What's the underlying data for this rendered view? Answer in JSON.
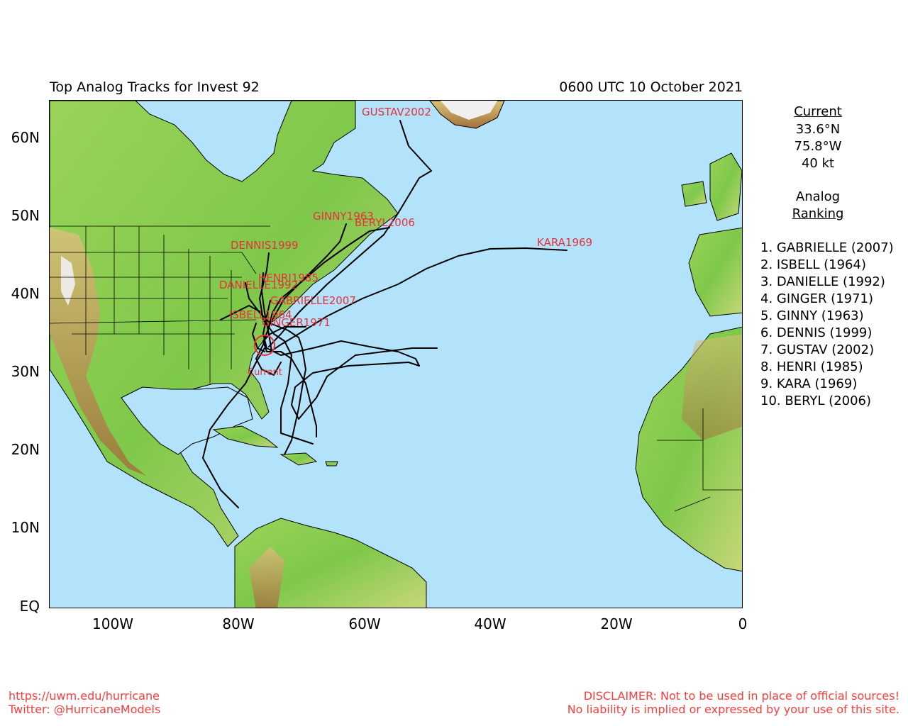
{
  "header": {
    "title": "Top Analog Tracks for Invest 92",
    "datetime": "0600 UTC 10 October 2021"
  },
  "axes": {
    "lat_labels": [
      "60N",
      "50N",
      "40N",
      "30N",
      "20N",
      "10N",
      "EQ"
    ],
    "lon_labels": [
      "100W",
      "80W",
      "60W",
      "40W",
      "20W",
      "0"
    ]
  },
  "current": {
    "heading": "Current",
    "lat": "33.6°N",
    "lon": "75.8°W",
    "intensity": "40 kt",
    "marker_label": "Current",
    "marker_color": "#e8303a"
  },
  "analog": {
    "heading_line1": "Analog",
    "heading_line2": "Ranking",
    "ranking": [
      "1.  GABRIELLE (2007)",
      "2.  ISBELL (1964)",
      "3.  DANIELLE (1992)",
      "4.  GINGER (1971)",
      "5.  GINNY (1963)",
      "6.  DENNIS (1999)",
      "7.  GUSTAV (2002)",
      "8.  HENRI (1985)",
      "9.  KARA (1969)",
      "10. BERYL (2006)"
    ]
  },
  "track_labels": [
    "GUSTAV2002",
    "GINNY1963",
    "BERYL2006",
    "KARA1969",
    "DENNIS1999",
    "HENRI1985",
    "DANIELLE1992",
    "GABRIELLE2007",
    "ISBELL1964",
    "GINGER1971"
  ],
  "colors": {
    "ocean": "#b3e2fb",
    "land_low": "#7ec84a",
    "land_mid": "#c8d77a",
    "land_high": "#a0703a",
    "snow": "#f0f0f0",
    "track": "#000000",
    "label": "#e8303a"
  },
  "footer": {
    "url": "https://uwm.edu/hurricane",
    "twitter": "Twitter: @HurricaneModels",
    "disclaimer1": "DISCLAIMER: Not to be used in place of official sources!",
    "disclaimer2": "No liability is implied or expressed by your use of this site."
  }
}
